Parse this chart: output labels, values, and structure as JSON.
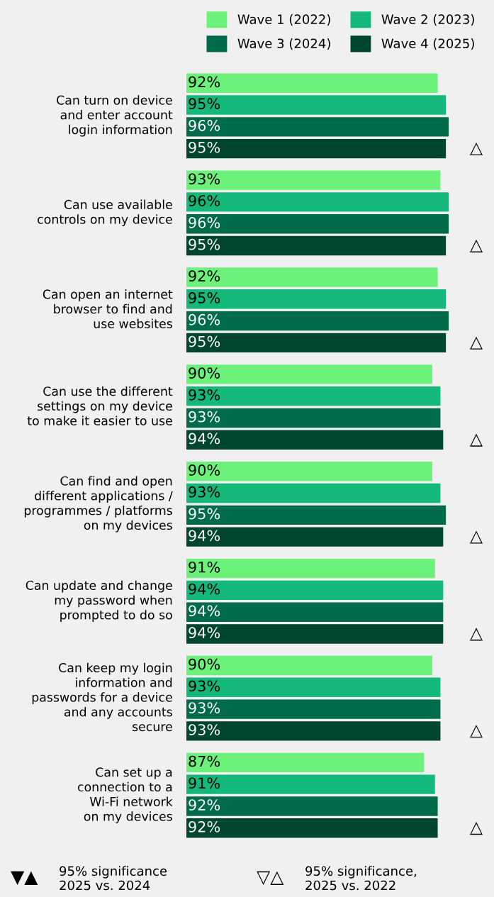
{
  "chart_data": {
    "type": "bar",
    "orientation": "horizontal",
    "legend": "top",
    "categories": [
      "Can turn on device\nand enter account\nlogin information",
      "Can use available\ncontrols on my device",
      "Can open an internet\nbrowser to find and\nuse websites",
      "Can use the different\nsettings on my device\nto make it easier to use",
      "Can find and open\ndifferent applications /\nprogrammes / platforms\non my devices",
      "Can update and change\nmy password when\nprompted to do so",
      "Can keep my login\ninformation and\npasswords for a device\nand any accounts\nsecure",
      "Can set up a\nconnection to a\nWi-Fi network\non my devices"
    ],
    "series": [
      {
        "name": "Wave 1 (2022)",
        "color": "#6cf27a",
        "values": [
          92,
          93,
          92,
          90,
          90,
          91,
          90,
          87
        ],
        "value_labels": [
          "92%",
          "93%",
          "92%",
          "90%",
          "90%",
          "91%",
          "90%",
          "87%"
        ]
      },
      {
        "name": "Wave 2 (2023)",
        "color": "#14b87a",
        "values": [
          95,
          96,
          95,
          93,
          93,
          94,
          93,
          91
        ],
        "value_labels": [
          "95%",
          "96%",
          "95%",
          "93%",
          "93%",
          "94%",
          "93%",
          "91%"
        ]
      },
      {
        "name": "Wave 3 (2024)",
        "color": "#006b4a",
        "values": [
          96,
          96,
          96,
          93,
          95,
          94,
          93,
          92
        ],
        "value_labels": [
          "96%",
          "96%",
          "96%",
          "93%",
          "95%",
          "94%",
          "93%",
          "92%"
        ]
      },
      {
        "name": "Wave 4 (2025)",
        "color": "#00452e",
        "values": [
          95,
          95,
          95,
          94,
          94,
          94,
          93,
          92
        ],
        "value_labels": [
          "95%",
          "95%",
          "95%",
          "94%",
          "94%",
          "94%",
          "93%",
          "92%"
        ]
      }
    ],
    "annotations": [
      "△",
      "△",
      "△",
      "△",
      "△",
      "△",
      "△",
      "△",
      "▼▲",
      "95% significance\n2025 vs. 2024",
      "▽△",
      "95% significance,\n2025 vs. 2022"
    ]
  }
}
